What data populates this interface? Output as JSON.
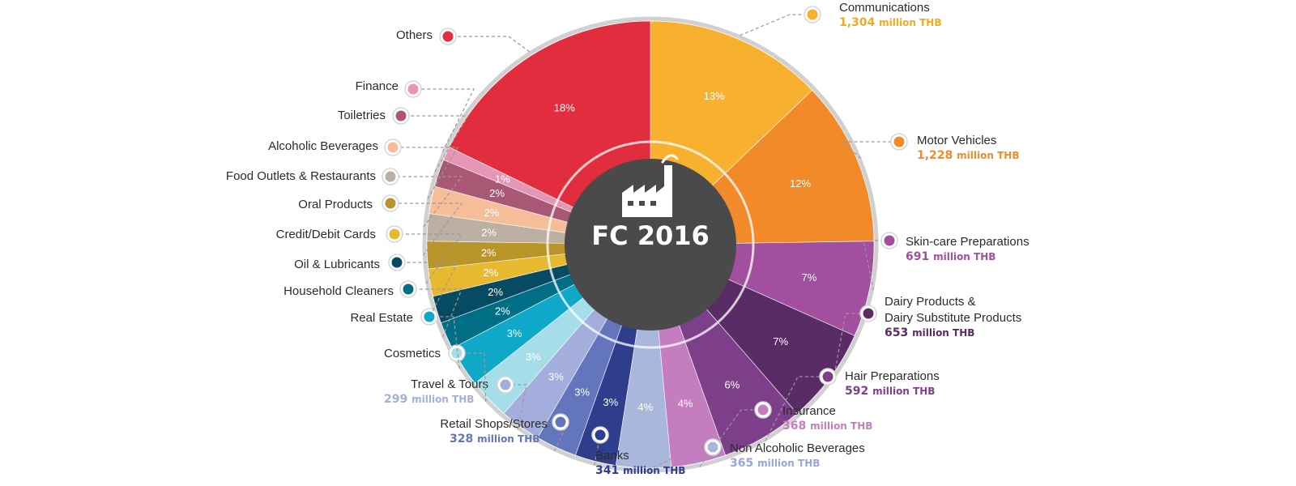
{
  "chart_data": {
    "type": "pie",
    "center_title": "FC 2016",
    "slices": [
      {
        "name": "Communications",
        "value": 13,
        "percent_label": "13%",
        "amount": "1,304",
        "amount_unit": "million THB",
        "color": "#f7b12f"
      },
      {
        "name": "Motor Vehicles",
        "value": 12,
        "percent_label": "12%",
        "amount": "1,228",
        "amount_unit": "million THB",
        "color": "#f28a2a"
      },
      {
        "name": "Skin-care Preparations",
        "value": 7,
        "percent_label": "7%",
        "amount": "691",
        "amount_unit": "million THB",
        "color": "#a14f9e"
      },
      {
        "name": "Dairy Products & Dairy Substitute Products",
        "value": 7,
        "percent_label": "7%",
        "amount": "653",
        "amount_unit": "million THB",
        "color": "#5a2c66"
      },
      {
        "name": "Hair Preparations",
        "value": 6,
        "percent_label": "6%",
        "amount": "592",
        "amount_unit": "million THB",
        "color": "#7e3f8a"
      },
      {
        "name": "Insurance",
        "value": 4,
        "percent_label": "4%",
        "amount": "368",
        "amount_unit": "million THB",
        "color": "#c47dbf"
      },
      {
        "name": "Non Alcoholic Beverages",
        "value": 4,
        "percent_label": "4%",
        "amount": "365",
        "amount_unit": "million THB",
        "color": "#a9b7dd"
      },
      {
        "name": "Banks",
        "value": 3,
        "percent_label": "3%",
        "amount": "341",
        "amount_unit": "million THB",
        "color": "#2e3d8c"
      },
      {
        "name": "Retail Shops/Stores",
        "value": 3,
        "percent_label": "3%",
        "amount": "328",
        "amount_unit": "million THB",
        "color": "#6275bd"
      },
      {
        "name": "Travel & Tours",
        "value": 3,
        "percent_label": "3%",
        "amount": "299",
        "amount_unit": "million THB",
        "color": "#a3aedc"
      },
      {
        "name": "Cosmetics",
        "value": 3,
        "percent_label": "3%",
        "amount": "",
        "amount_unit": "",
        "color": "#a5dde9"
      },
      {
        "name": "Real Estate",
        "value": 3,
        "percent_label": "3%",
        "amount": "",
        "amount_unit": "",
        "color": "#0fa8c8"
      },
      {
        "name": "Household Cleaners",
        "value": 2,
        "percent_label": "2%",
        "amount": "",
        "amount_unit": "",
        "color": "#006e84"
      },
      {
        "name": "Oil & Lubricants",
        "value": 2,
        "percent_label": "2%",
        "amount": "",
        "amount_unit": "",
        "color": "#064b62"
      },
      {
        "name": "Credit/Debit Cards",
        "value": 2,
        "percent_label": "2%",
        "amount": "",
        "amount_unit": "",
        "color": "#e7b931"
      },
      {
        "name": "Oral Products",
        "value": 2,
        "percent_label": "2%",
        "amount": "",
        "amount_unit": "",
        "color": "#b99428"
      },
      {
        "name": "Food Outlets & Restaurants",
        "value": 2,
        "percent_label": "2%",
        "amount": "",
        "amount_unit": "",
        "color": "#bcb0a2"
      },
      {
        "name": "Alcoholic Beverages",
        "value": 2,
        "percent_label": "2%",
        "amount": "",
        "amount_unit": "",
        "color": "#f5be98"
      },
      {
        "name": "Toiletries",
        "value": 2,
        "percent_label": "2%",
        "amount": "",
        "amount_unit": "",
        "color": "#a85875"
      },
      {
        "name": "Finance",
        "value": 1,
        "percent_label": "1%",
        "amount": "",
        "amount_unit": "",
        "color": "#e596b4"
      },
      {
        "name": "Others",
        "value": 18,
        "percent_label": "18%",
        "amount": "",
        "amount_unit": "",
        "color": "#e12d3e"
      }
    ]
  }
}
